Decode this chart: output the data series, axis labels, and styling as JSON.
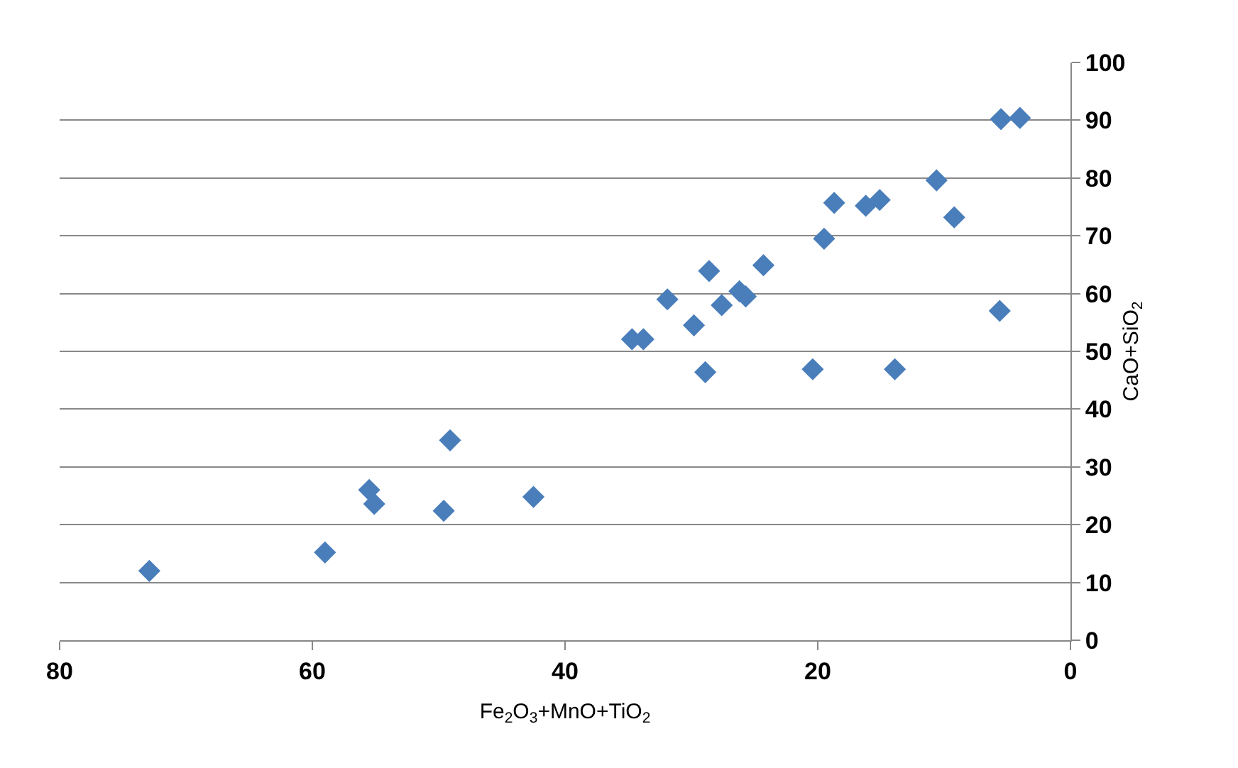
{
  "chart_data": {
    "type": "scatter",
    "xlabel": "Fe$_{2}$O$_{3}$+MnO+TiO$_{2}$",
    "ylabel": "CaO+SiO$_{2}$",
    "x": [
      72.9,
      59.0,
      55.5,
      55.1,
      49.1,
      49.6,
      42.5,
      34.7,
      33.8,
      31.9,
      29.8,
      28.9,
      28.6,
      27.6,
      26.2,
      25.7,
      24.3,
      20.4,
      19.5,
      18.7,
      16.2,
      15.1,
      13.9,
      10.6,
      9.2,
      5.6,
      5.5,
      4.0
    ],
    "series": [
      {
        "color": "#4a7ebb",
        "values": [
          12.0,
          15.2,
          26,
          23.6,
          34.6,
          22.4,
          24.8,
          52.1,
          52.1,
          59,
          54.5,
          46.4,
          63.9,
          58,
          60.4,
          59.5,
          64.9,
          46.9,
          69.5,
          75.7,
          75.2,
          76.2,
          46.9,
          79.6,
          73.2,
          57,
          90.2,
          90.4
        ]
      }
    ],
    "xlim": [
      80,
      0
    ],
    "xticks": [
      80,
      60,
      40,
      20,
      0
    ],
    "ylim": [
      0,
      100
    ],
    "yticks": [
      0,
      10,
      20,
      30,
      40,
      50,
      60,
      70,
      80,
      90,
      100
    ],
    "grid": "y",
    "marker": "diamond"
  }
}
